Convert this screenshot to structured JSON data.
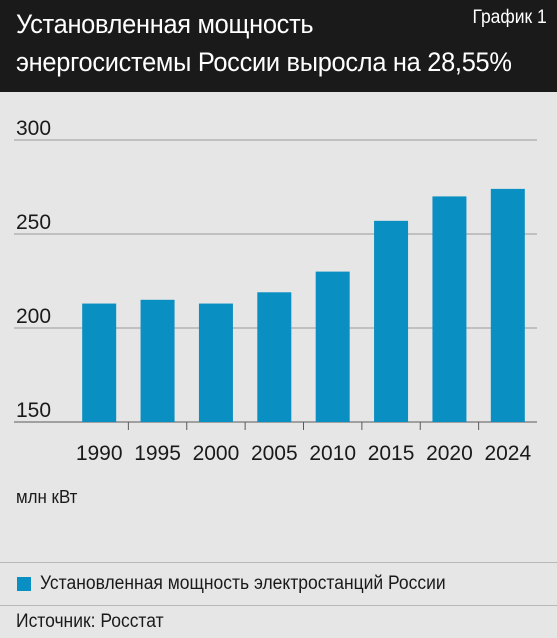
{
  "header": {
    "title_line1": "Установленная мощность",
    "title_line2": "энергосистемы России выросла на 28,55%",
    "tag": "График 1"
  },
  "colors": {
    "header_bg": "#1a1a1a",
    "page_bg": "#e6e6e6",
    "bar": "#0a8fc2"
  },
  "chart_data": {
    "type": "bar",
    "title": "Установленная мощность энергосистемы России выросла на 28,55%",
    "categories": [
      "1990",
      "1995",
      "2000",
      "2005",
      "2010",
      "2015",
      "2020",
      "2024"
    ],
    "series": [
      {
        "name": "Установленная мощность электростанций России",
        "values": [
          213,
          215,
          213,
          219,
          230,
          257,
          270,
          274
        ]
      }
    ],
    "ylim": [
      150,
      300
    ],
    "yticks": [
      "150",
      "200",
      "250",
      "300"
    ],
    "xlabel": "",
    "ylabel": "млн кВт",
    "grid": true,
    "legend": "bottom"
  },
  "unit_label": "млн кВт",
  "legend_label": "Установленная мощность электростанций России",
  "source": "Источник: Росстат"
}
